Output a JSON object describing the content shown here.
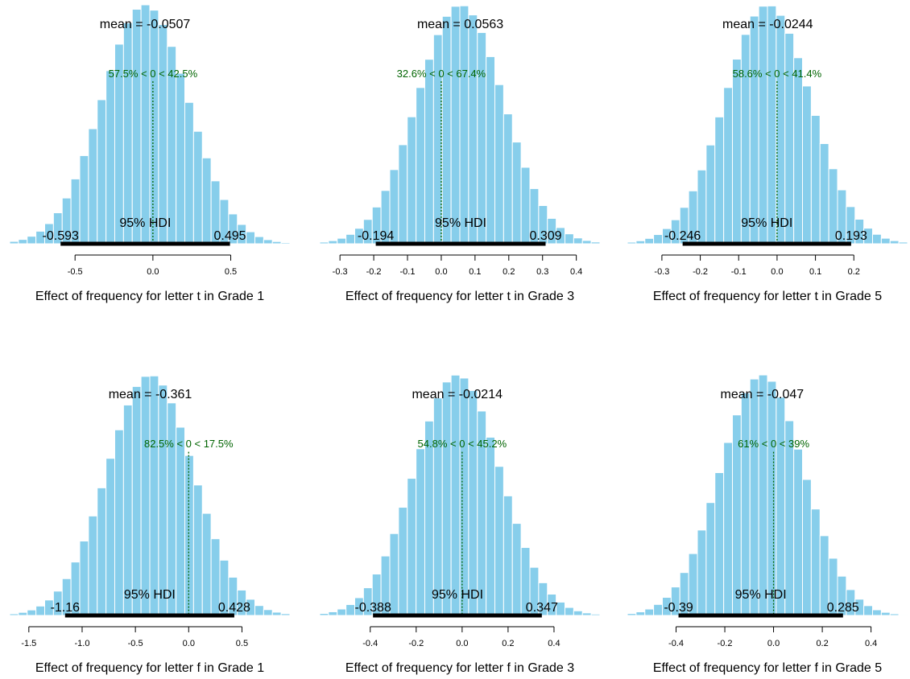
{
  "colors": {
    "bar": "#87ceeb",
    "bar_edge": "#ffffff",
    "hdi": "#000000",
    "compare": "#006400",
    "axis": "#000000"
  },
  "chart_data": [
    {
      "type": "bar",
      "bars": "histogram",
      "xlabel": "Effect of frequency for letter t in Grade 1",
      "mean_label": "mean = -0.0507",
      "mean": -0.0507,
      "compare_value": 0,
      "compare_label": "57.5% < 0 < 42.5%",
      "hdi_label": "95% HDI",
      "hdi_low": -0.593,
      "hdi_high": 0.495,
      "hdi_low_label": "-0.593",
      "hdi_high_label": "0.495",
      "sd": 0.277,
      "xlim": [
        -0.92,
        0.88
      ],
      "xticks": [
        -0.5,
        0.0,
        0.5
      ],
      "xtick_labels": [
        "-0.5",
        "0.0",
        "0.5"
      ]
    },
    {
      "type": "bar",
      "bars": "histogram",
      "xlabel": "Effect of frequency for letter t in Grade 3",
      "mean_label": "mean = 0.0563",
      "mean": 0.0563,
      "compare_value": 0,
      "compare_label": "32.6% < 0 < 67.4%",
      "hdi_label": "95% HDI",
      "hdi_low": -0.194,
      "hdi_high": 0.309,
      "hdi_low_label": "-0.194",
      "hdi_high_label": "0.309",
      "sd": 0.128,
      "xlim": [
        -0.36,
        0.47
      ],
      "xticks": [
        -0.3,
        -0.2,
        -0.1,
        0.0,
        0.1,
        0.2,
        0.3,
        0.4
      ],
      "xtick_labels": [
        "-0.3",
        "-0.2",
        "-0.1",
        "0.0",
        "0.1",
        "0.2",
        "0.3",
        "0.4"
      ]
    },
    {
      "type": "bar",
      "bars": "histogram",
      "xlabel": "Effect of frequency for letter t in Grade 5",
      "mean_label": "mean = -0.0244",
      "mean": -0.0244,
      "compare_value": 0,
      "compare_label": "58.6% < 0 < 41.4%",
      "hdi_label": "95% HDI",
      "hdi_low": -0.246,
      "hdi_high": 0.193,
      "hdi_low_label": "-0.246",
      "hdi_high_label": "0.193",
      "sd": 0.112,
      "xlim": [
        -0.39,
        0.34
      ],
      "xticks": [
        -0.3,
        -0.2,
        -0.1,
        0.0,
        0.1,
        0.2
      ],
      "xtick_labels": [
        "-0.3",
        "-0.2",
        "-0.1",
        "0.0",
        "0.1",
        "0.2"
      ]
    },
    {
      "type": "bar",
      "bars": "histogram",
      "xlabel": "Effect of frequency for letter f in Grade 1",
      "mean_label": "mean = -0.361",
      "mean": -0.361,
      "compare_value": 0,
      "compare_label": "82.5% < 0 < 17.5%",
      "hdi_label": "95% HDI",
      "hdi_low": -1.16,
      "hdi_high": 0.428,
      "hdi_low_label": "-1.16",
      "hdi_high_label": "0.428",
      "sd": 0.405,
      "xlim": [
        -1.68,
        0.95
      ],
      "xticks": [
        -1.5,
        -1.0,
        -0.5,
        0.0,
        0.5
      ],
      "xtick_labels": [
        "-1.5",
        "-1.0",
        "-0.5",
        "0.0",
        "0.5"
      ]
    },
    {
      "type": "bar",
      "bars": "histogram",
      "xlabel": "Effect of frequency for letter f in Grade 3",
      "mean_label": "mean = -0.0214",
      "mean": -0.0214,
      "compare_value": 0,
      "compare_label": "54.8% < 0 < 45.2%",
      "hdi_label": "95% HDI",
      "hdi_low": -0.388,
      "hdi_high": 0.347,
      "hdi_low_label": "-0.388",
      "hdi_high_label": "0.347",
      "sd": 0.187,
      "xlim": [
        -0.62,
        0.6
      ],
      "xticks": [
        -0.4,
        -0.2,
        0.0,
        0.2,
        0.4
      ],
      "xtick_labels": [
        "-0.4",
        "-0.2",
        "0.0",
        "0.2",
        "0.4"
      ]
    },
    {
      "type": "bar",
      "bars": "histogram",
      "xlabel": "Effect of frequency for letter f in Grade 5",
      "mean_label": "mean = -0.047",
      "mean": -0.047,
      "compare_value": 0,
      "compare_label": "61% < 0 < 39%",
      "hdi_label": "95% HDI",
      "hdi_low": -0.39,
      "hdi_high": 0.285,
      "hdi_low_label": "-0.39",
      "hdi_high_label": "0.285",
      "sd": 0.172,
      "xlim": [
        -0.6,
        0.55
      ],
      "xticks": [
        -0.4,
        -0.2,
        0.0,
        0.2,
        0.4
      ],
      "xtick_labels": [
        "-0.4",
        "-0.2",
        "0.0",
        "0.2",
        "0.4"
      ]
    }
  ]
}
